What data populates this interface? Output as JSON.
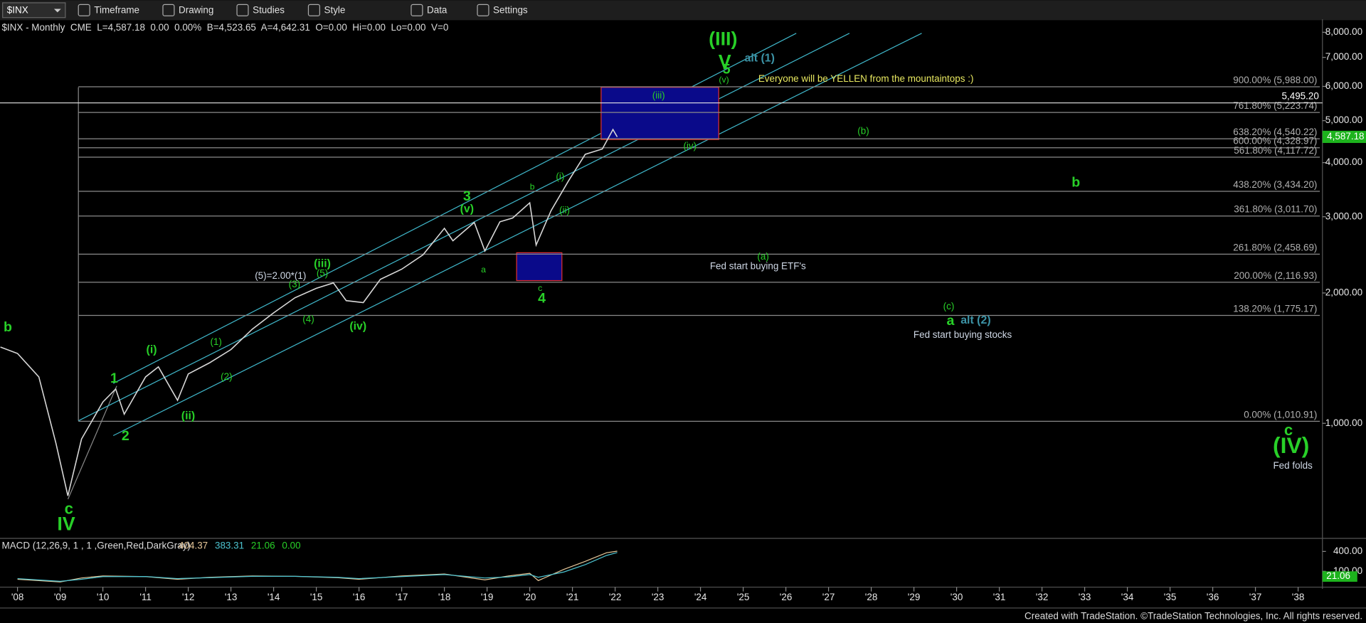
{
  "toolbar": {
    "symbol": "$INX",
    "items": [
      "Timeframe",
      "Drawing",
      "Studies",
      "Style",
      "Data",
      "Settings"
    ]
  },
  "chart_data": {
    "type": "line",
    "header": "$INX - Monthly  CME  L=4,587.18  0.00  0.00%  B=4,523.65  A=4,642.31  O=0.00  Hi=0.00  Lo=0.00  V=0",
    "log_scale": true,
    "color": "#d8d8d8",
    "x": [
      2007.6,
      2008.0,
      2008.5,
      2008.9,
      2009.18,
      2009.5,
      2010.0,
      2010.3,
      2010.5,
      2011.0,
      2011.3,
      2011.75,
      2012.0,
      2012.5,
      2013.0,
      2013.5,
      2014.0,
      2014.5,
      2015.0,
      2015.4,
      2015.7,
      2016.1,
      2016.5,
      2017.0,
      2017.5,
      2018.0,
      2018.2,
      2018.7,
      2018.95,
      2019.3,
      2019.6,
      2020.0,
      2020.15,
      2020.5,
      2020.9,
      2021.3,
      2021.7,
      2021.95,
      2022.05
    ],
    "values": [
      1500,
      1450,
      1280,
      900,
      680,
      920,
      1120,
      1200,
      1050,
      1280,
      1350,
      1130,
      1300,
      1380,
      1480,
      1650,
      1800,
      1950,
      2050,
      2110,
      1920,
      1900,
      2150,
      2270,
      2450,
      2820,
      2640,
      2910,
      2500,
      2920,
      2980,
      3230,
      2580,
      3100,
      3620,
      4180,
      4300,
      4770,
      4587.18
    ],
    "xlim": [
      2007.59,
      2038.57
    ],
    "ylim": [
      550,
      8570
    ],
    "xticks": [
      {
        "value": 2008,
        "label": "'08"
      },
      {
        "value": 2009,
        "label": "'09"
      },
      {
        "value": 2010,
        "label": "'10"
      },
      {
        "value": 2011,
        "label": "'11"
      },
      {
        "value": 2012,
        "label": "'12"
      },
      {
        "value": 2013,
        "label": "'13"
      },
      {
        "value": 2014,
        "label": "'14"
      },
      {
        "value": 2015,
        "label": "'15"
      },
      {
        "value": 2016,
        "label": "'16"
      },
      {
        "value": 2017,
        "label": "'17"
      },
      {
        "value": 2018,
        "label": "'18"
      },
      {
        "value": 2019,
        "label": "'19"
      },
      {
        "value": 2020,
        "label": "'20"
      },
      {
        "value": 2021,
        "label": "'21"
      },
      {
        "value": 2022,
        "label": "'22"
      },
      {
        "value": 2023,
        "label": "'23"
      },
      {
        "value": 2024,
        "label": "'24"
      },
      {
        "value": 2025,
        "label": "'25"
      },
      {
        "value": 2026,
        "label": "'26"
      },
      {
        "value": 2027,
        "label": "'27"
      },
      {
        "value": 2028,
        "label": "'28"
      },
      {
        "value": 2029,
        "label": "'29"
      },
      {
        "value": 2030,
        "label": "'30"
      },
      {
        "value": 2031,
        "label": "'31"
      },
      {
        "value": 2032,
        "label": "'32"
      },
      {
        "value": 2033,
        "label": "'33"
      },
      {
        "value": 2034,
        "label": "'34"
      },
      {
        "value": 2035,
        "label": "'35"
      },
      {
        "value": 2036,
        "label": "'36"
      },
      {
        "value": 2037,
        "label": "'37"
      },
      {
        "value": 2038,
        "label": "'38"
      }
    ],
    "yticks": [
      {
        "value": 8000,
        "label": "8,000.00"
      },
      {
        "value": 7000,
        "label": "7,000.00"
      },
      {
        "value": 6000,
        "label": "6,000.00"
      },
      {
        "value": 5000,
        "label": "5,000.00"
      },
      {
        "value": 4000,
        "label": "4,000.00"
      },
      {
        "value": 3000,
        "label": "3,000.00"
      },
      {
        "value": 2000,
        "label": "2,000.00"
      },
      {
        "value": 1000,
        "label": "1,000.00"
      }
    ],
    "levels": [
      {
        "value": 5988,
        "label": "900.00% (5,988.00)"
      },
      {
        "value": 5223.74,
        "label": "761.80% (5,223.74)"
      },
      {
        "value": 4540.22,
        "label": "638.20% (4,540.22)"
      },
      {
        "value": 4328.97,
        "label": "600.00% (4,328.97)"
      },
      {
        "value": 4117.72,
        "label": "561.80% (4,117.72)"
      },
      {
        "value": 3434.2,
        "label": "438.20% (3,434.20)"
      },
      {
        "value": 3011.7,
        "label": "361.80% (3,011.70)"
      },
      {
        "value": 2458.69,
        "label": "261.80% (2,458.69)"
      },
      {
        "value": 2116.93,
        "label": "200.00% (2,116.93)"
      },
      {
        "value": 1775.17,
        "label": "138.20% (1,775.17)"
      },
      {
        "value": 1010.91,
        "label": "0.00% (1,010.91)"
      }
    ],
    "marker_line": {
      "value": 5495.2,
      "label": "5,495.20"
    },
    "last_price": {
      "value": 4587.18,
      "label": "4,587.18"
    },
    "annotations": [
      "(III)",
      "V",
      "5",
      "(v)",
      "alt (1)",
      "Everyone will be YELLEN from the mountaintops :)",
      "(iii)",
      "(iv)",
      "(b)",
      "b",
      "3",
      "(v)",
      "b",
      "(i)",
      "(ii)",
      "(a)",
      "Fed start buying ETF's",
      "a",
      "c",
      "4",
      "(5)=2.00*(1)",
      "(iii)",
      "(5)",
      "(3)",
      "(4)",
      "(iv)",
      "(c)",
      "a",
      "alt (2)",
      "Fed start buying stocks",
      "b",
      "(i)",
      "(1)",
      "(2)",
      "1",
      "(ii)",
      "2",
      "c",
      "IV",
      "c",
      "(IV)",
      "Fed folds"
    ],
    "indicator": {
      "title": "MACD (12,26,9, 1 , 1 ,Green,Red,DarkGray)",
      "readouts": [
        "404.37",
        "383.31",
        "21.06",
        "0.00"
      ],
      "ylim": [
        -86,
        571
      ],
      "yticks": [
        {
          "value": 400,
          "label": "400.00"
        },
        {
          "value": 100,
          "label": "100.00"
        }
      ],
      "last": {
        "value": 21.06,
        "label": "21.06"
      },
      "x": [
        2008,
        2009,
        2009.5,
        2010,
        2011,
        2011.75,
        2012.5,
        2013.5,
        2014.5,
        2015.5,
        2016,
        2017,
        2018,
        2018.95,
        2019.5,
        2020,
        2020.2,
        2020.8,
        2021.3,
        2021.8,
        2022.05
      ],
      "series": [
        {
          "name": "MACD",
          "color": "#e8c89a",
          "values": [
            -20,
            -60,
            0,
            30,
            20,
            -20,
            10,
            30,
            25,
            5,
            -20,
            30,
            60,
            -30,
            30,
            70,
            -40,
            130,
            250,
            380,
            404.37
          ]
        },
        {
          "name": "Signal",
          "color": "#4cc3d0",
          "values": [
            -10,
            -50,
            -20,
            20,
            22,
            -10,
            5,
            25,
            25,
            10,
            -10,
            20,
            50,
            0,
            15,
            50,
            10,
            90,
            200,
            340,
            383.31
          ]
        }
      ]
    }
  },
  "footer": "Created with TradeStation. ©TradeStation Technologies, Inc. All rights reserved."
}
